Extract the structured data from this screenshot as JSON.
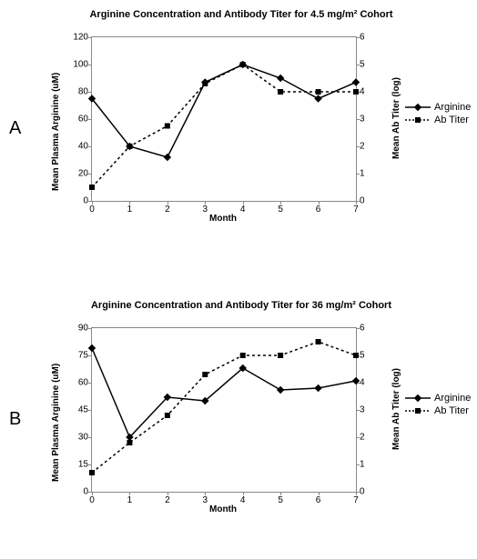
{
  "panelA": {
    "letter": "A",
    "title": "Arginine Concentration and Antibody Titer for 4.5 mg/m² Cohort",
    "title_fontsize": 11,
    "xlabel": "Month",
    "ylabel_left": "Mean Plasma Arginine (uM)",
    "ylabel_right": "Mean Ab Titer (log)",
    "label_fontsize": 10,
    "xlim": [
      0,
      7
    ],
    "ylim_left": [
      0,
      120
    ],
    "ylim_right": [
      0,
      6
    ],
    "xtick_step": 1,
    "ytick_left_step": 20,
    "ytick_right_step": 1,
    "x": [
      0,
      1,
      2,
      3,
      4,
      5,
      6,
      7
    ],
    "arginine": [
      75,
      40,
      32,
      87,
      100,
      90,
      75,
      87
    ],
    "abtiter": [
      0.5,
      2.0,
      2.75,
      4.3,
      5.0,
      4.0,
      4.0,
      4.0
    ],
    "legend": {
      "arginine": "Arginine",
      "abtiter": "Ab Titer"
    },
    "line_color": "#000000",
    "arginine_marker": "diamond",
    "abtiter_marker": "square",
    "line_width": 1.5,
    "marker_size": 6,
    "background": "#ffffff",
    "axis_color": "#888888"
  },
  "panelB": {
    "letter": "B",
    "title": "Arginine Concentration and Antibody Titer for 36 mg/m² Cohort",
    "title_fontsize": 11,
    "xlabel": "Month",
    "ylabel_left": "Mean Plasma Arginine (uM)",
    "ylabel_right": "Mean Ab Titer (log)",
    "label_fontsize": 10,
    "xlim": [
      0,
      7
    ],
    "ylim_left": [
      0,
      90
    ],
    "ylim_right": [
      0,
      6
    ],
    "xtick_step": 1,
    "ytick_left_step": 15,
    "ytick_right_step": 1,
    "x": [
      0,
      1,
      2,
      3,
      4,
      5,
      6,
      7
    ],
    "arginine": [
      79,
      30,
      52,
      50,
      68,
      56,
      57,
      61
    ],
    "abtiter": [
      0.7,
      1.8,
      2.8,
      4.3,
      5.0,
      5.0,
      5.5,
      5.0
    ],
    "legend": {
      "arginine": "Arginine",
      "abtiter": "Ab Titer"
    },
    "line_color": "#000000",
    "arginine_marker": "diamond",
    "abtiter_marker": "square",
    "line_width": 1.5,
    "marker_size": 6,
    "background": "#ffffff",
    "axis_color": "#888888"
  }
}
